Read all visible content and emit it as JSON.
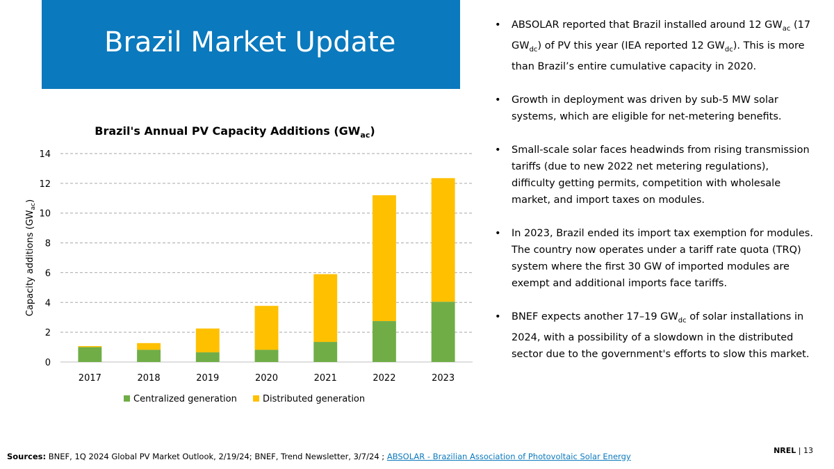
{
  "slide": {
    "title": "Brazil Market Update",
    "bullets": [
      {
        "parts": [
          {
            "t": "ABSOLAR reported that Brazil installed around 12 GW"
          },
          {
            "t": "ac",
            "sub": true
          },
          {
            "t": " (17 GW"
          },
          {
            "t": "dc",
            "sub": true
          },
          {
            "t": ") of PV this year (IEA reported 12 GW"
          },
          {
            "t": "dc",
            "sub": true
          },
          {
            "t": "). This is more than Brazil’s entire cumulative capacity in 2020."
          }
        ]
      },
      {
        "parts": [
          {
            "t": "Growth in deployment was driven by sub-5 MW solar systems, which are eligible for net-metering benefits."
          }
        ]
      },
      {
        "parts": [
          {
            "t": "Small-scale solar faces headwinds from rising transmission tariffs (due to new 2022 net metering regulations), difficulty getting permits, competition with wholesale market, and import taxes on modules."
          }
        ]
      },
      {
        "parts": [
          {
            "t": "In 2023, Brazil ended its import tax exemption for modules. The country now operates under a tariff rate quota (TRQ) system where the first 30 GW of imported modules are exempt and additional imports face tariffs."
          }
        ]
      },
      {
        "parts": [
          {
            "t": "BNEF expects another 17–19 GW"
          },
          {
            "t": "dc",
            "sub": true
          },
          {
            "t": " of solar installations in 2024, with a possibility of a slowdown in the distributed sector due to the government's efforts to slow this market."
          }
        ]
      }
    ],
    "sources_label": "Sources:",
    "sources_text": " BNEF, 1Q 2024 Global PV Market Outlook, 2/19/24; BNEF, Trend Newsletter, 3/7/24 ; ",
    "sources_link": "ABSOLAR - Brazilian Association of Photovoltaic Solar Energy",
    "footer_brand": "NREL",
    "footer_sep": " | ",
    "footer_page": "13",
    "colors": {
      "title_bg": "#0b79bd",
      "centralized": "#70ad47",
      "distributed": "#ffc000",
      "link": "#0b79bd"
    }
  },
  "chart_data": {
    "type": "bar",
    "stacked": true,
    "title": "Brazil's Annual PV Capacity Additions (GW",
    "title_sub": "ac",
    "title_end": ")",
    "ylabel": "Capacity additions (GW",
    "ylabel_sub": "ac",
    "ylabel_end": ")",
    "categories": [
      "2017",
      "2018",
      "2019",
      "2020",
      "2021",
      "2022",
      "2023"
    ],
    "ylim": [
      0,
      14
    ],
    "yticks": [
      0,
      2,
      4,
      6,
      8,
      10,
      12,
      14
    ],
    "grid": true,
    "legend_position": "bottom",
    "series": [
      {
        "name": "Centralized generation",
        "color": "#70ad47",
        "values": [
          1.0,
          0.82,
          0.65,
          0.82,
          1.35,
          2.75,
          4.05
        ]
      },
      {
        "name": "Distributed generation",
        "color": "#ffc000",
        "values": [
          0.07,
          0.45,
          1.6,
          2.95,
          4.55,
          8.45,
          8.3
        ]
      }
    ]
  }
}
